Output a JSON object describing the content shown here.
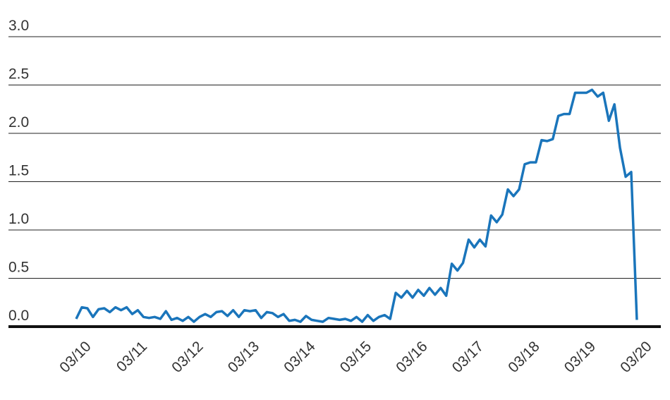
{
  "chart_data": {
    "type": "line",
    "categories": [
      "03/10",
      null,
      null,
      null,
      null,
      null,
      null,
      null,
      null,
      null,
      "03/11",
      null,
      null,
      null,
      null,
      null,
      null,
      null,
      null,
      null,
      "03/12",
      null,
      null,
      null,
      null,
      null,
      null,
      null,
      null,
      null,
      "03/13",
      null,
      null,
      null,
      null,
      null,
      null,
      null,
      null,
      null,
      "03/14",
      null,
      null,
      null,
      null,
      null,
      null,
      null,
      null,
      null,
      "03/15",
      null,
      null,
      null,
      null,
      null,
      null,
      null,
      null,
      null,
      "03/16",
      null,
      null,
      null,
      null,
      null,
      null,
      null,
      null,
      null,
      "03/17",
      null,
      null,
      null,
      null,
      null,
      null,
      null,
      null,
      null,
      "03/18",
      null,
      null,
      null,
      null,
      null,
      null,
      null,
      null,
      null,
      "03/19",
      null,
      null,
      null,
      null,
      null,
      null,
      null,
      null,
      null,
      "03/20"
    ],
    "values": [
      0.08,
      0.2,
      0.19,
      0.1,
      0.18,
      0.19,
      0.15,
      0.2,
      0.17,
      0.2,
      0.13,
      0.17,
      0.1,
      0.09,
      0.1,
      0.08,
      0.16,
      0.07,
      0.09,
      0.06,
      0.1,
      0.05,
      0.1,
      0.13,
      0.1,
      0.15,
      0.16,
      0.11,
      0.17,
      0.1,
      0.17,
      0.16,
      0.17,
      0.09,
      0.15,
      0.14,
      0.1,
      0.13,
      0.06,
      0.07,
      0.05,
      0.11,
      0.07,
      0.06,
      0.05,
      0.09,
      0.08,
      0.07,
      0.08,
      0.06,
      0.1,
      0.05,
      0.12,
      0.06,
      0.1,
      0.12,
      0.08,
      0.35,
      0.3,
      0.37,
      0.3,
      0.38,
      0.32,
      0.4,
      0.33,
      0.4,
      0.32,
      0.65,
      0.58,
      0.66,
      0.9,
      0.82,
      0.9,
      0.83,
      1.15,
      1.08,
      1.16,
      1.42,
      1.35,
      1.42,
      1.68,
      1.7,
      1.7,
      1.93,
      1.92,
      1.94,
      2.18,
      2.2,
      2.2,
      2.42,
      2.42,
      2.42,
      2.45,
      2.38,
      2.42,
      2.13,
      2.3,
      1.85,
      1.55,
      1.6,
      0.07
    ],
    "color": "#1a75bb",
    "ylim": [
      0,
      3
    ],
    "yticks": [
      {
        "value": 0,
        "label": "0.0"
      },
      0.5,
      {
        "value": 1,
        "label": "1.0"
      },
      1.5,
      {
        "value": 2,
        "label": "2.0"
      },
      2.5,
      {
        "value": 3,
        "label": "3.0"
      }
    ],
    "grid": true
  }
}
